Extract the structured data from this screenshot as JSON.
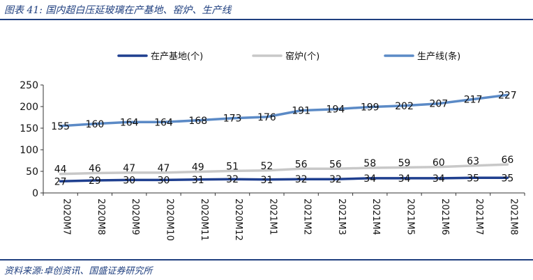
{
  "figure": {
    "title": "图表 41:  国内超白压延玻璃在产基地、窑炉、生产线",
    "source": "资料来源:卓创资讯、国盛证券研究所"
  },
  "chart_data": {
    "type": "line",
    "title": "",
    "xlabel": "",
    "ylabel": "",
    "ylim": [
      0,
      250
    ],
    "yticks": [
      0,
      50,
      100,
      150,
      200,
      250
    ],
    "grid": false,
    "legend_position": "top",
    "categories": [
      "2020M7",
      "2020M8",
      "2020M9",
      "2020M10",
      "2020M11",
      "2020M12",
      "2021M1",
      "2021M2",
      "2021M3",
      "2021M4",
      "2021M5",
      "2021M6",
      "2021M7",
      "2021M8"
    ],
    "series": [
      {
        "name": "在产基地(个)",
        "color": "#1f3f8f",
        "values": [
          27,
          29,
          30,
          30,
          31,
          32,
          31,
          32,
          32,
          34,
          34,
          34,
          35,
          35
        ]
      },
      {
        "name": "窑炉(个)",
        "color": "#c8c8c8",
        "values": [
          44,
          46,
          47,
          47,
          49,
          51,
          52,
          56,
          56,
          58,
          59,
          60,
          63,
          66
        ]
      },
      {
        "name": "生产线(条)",
        "color": "#5b8ac6",
        "values": [
          155,
          160,
          164,
          164,
          168,
          173,
          176,
          191,
          194,
          199,
          202,
          207,
          217,
          227
        ]
      }
    ]
  }
}
